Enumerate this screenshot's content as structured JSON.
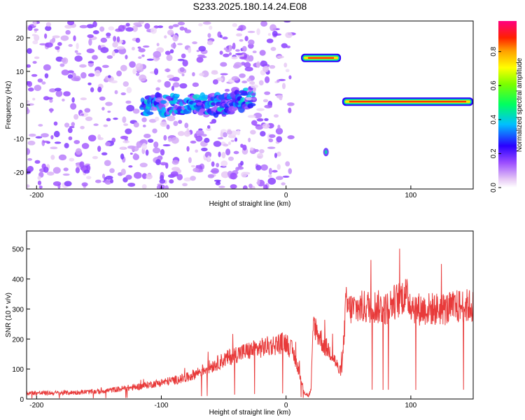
{
  "figure": {
    "title": "S233.2025.180.14.24.E08"
  },
  "chart_data": [
    {
      "type": "heatmap",
      "xlabel": "Height of straight line (km)",
      "ylabel": "Frequency (Hz)",
      "xlim": [
        -208,
        150
      ],
      "ylim": [
        -25,
        25
      ],
      "x_ticks": [
        "-200",
        "-100",
        "0",
        "100"
      ],
      "y_ticks": [
        "20",
        "10",
        "0",
        "-10",
        "-20"
      ],
      "colorbar": {
        "label": "Normalized spectral amplitude",
        "range": [
          0,
          0.98
        ],
        "ticks": [
          "0.0",
          "0.2",
          "0.4",
          "0.6",
          "0.8"
        ],
        "colormap": "rainbow (white-violet-blue-cyan-green-yellow-red-magenta)"
      },
      "features": [
        {
          "x_range": [
            -208,
            -30
          ],
          "y_range": [
            -25,
            25
          ],
          "amplitude": 0.15,
          "kind": "scattered noise"
        },
        {
          "x_range": [
            -115,
            -25
          ],
          "y": 0,
          "amplitude": 0.3,
          "kind": "band rising slightly toward x=-25"
        },
        {
          "x_range": [
            -30,
            5
          ],
          "y_range": [
            -25,
            25
          ],
          "amplitude": 0.15,
          "kind": "vertical noise column"
        },
        {
          "x_range": [
            12,
            44
          ],
          "y": 14,
          "amplitude": 0.9,
          "kind": "strong line"
        },
        {
          "x": 32,
          "y": -14,
          "amplitude": 0.3,
          "kind": "isolated blob"
        },
        {
          "x_range": [
            45,
            150
          ],
          "y": 1,
          "amplitude": 0.9,
          "kind": "strong line"
        }
      ],
      "grid": false
    },
    {
      "type": "line",
      "xlabel": "Height of straight line (km)",
      "ylabel": "SNR (10 * v/v)",
      "xlim": [
        -208,
        150
      ],
      "ylim": [
        0,
        560
      ],
      "x_ticks": [
        "-200",
        "-100",
        "0",
        "100"
      ],
      "y_ticks": [
        "0",
        "100",
        "200",
        "300",
        "400",
        "500"
      ],
      "color": "#e83a3a",
      "grid": false,
      "series": [
        {
          "x": [
            -208,
            -180,
            -150,
            -120,
            -100,
            -80,
            -70,
            -60,
            -50,
            -40,
            -30,
            -20,
            -10,
            0,
            5,
            10,
            12,
            15,
            18,
            20,
            22,
            25,
            28,
            30,
            35,
            38,
            40,
            43,
            45,
            48,
            50,
            60,
            70,
            80,
            85,
            90,
            95,
            100,
            105,
            110,
            120,
            130,
            140,
            150
          ],
          "values": [
            20,
            20,
            25,
            40,
            55,
            70,
            90,
            110,
            130,
            150,
            160,
            170,
            180,
            190,
            160,
            100,
            60,
            20,
            10,
            30,
            260,
            220,
            200,
            180,
            160,
            140,
            120,
            90,
            110,
            320,
            300,
            305,
            310,
            300,
            320,
            330,
            350,
            320,
            300,
            300,
            300,
            300,
            310,
            310
          ]
        }
      ]
    }
  ]
}
